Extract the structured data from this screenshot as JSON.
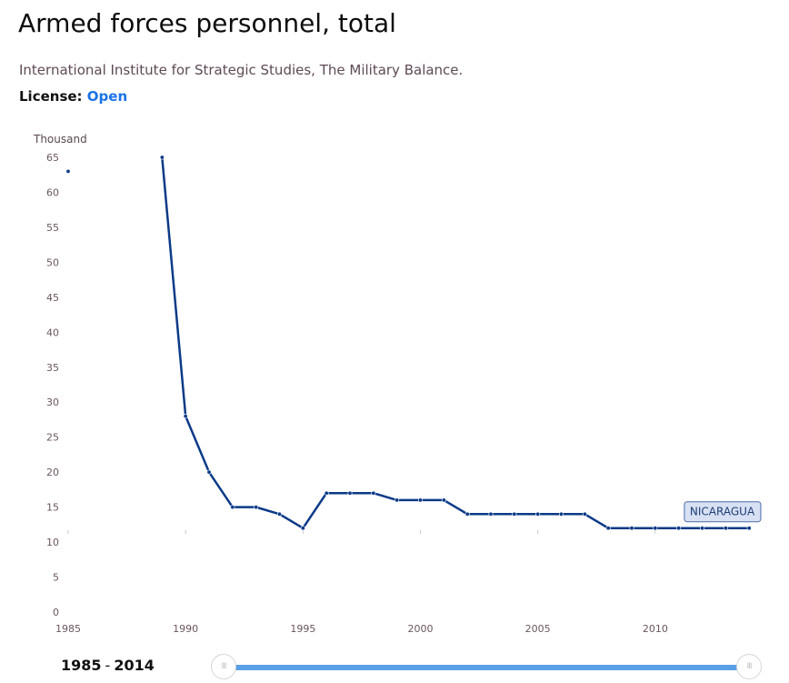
{
  "header": {
    "title": "Armed forces personnel, total",
    "source": "International Institute for Strategic Studies, The Military Balance.",
    "license_label": "License:",
    "license_value": "Open"
  },
  "chart_data": {
    "type": "line",
    "y_unit_label": "Thousand",
    "xlim": [
      1985,
      2015
    ],
    "ylim": [
      0,
      65
    ],
    "x_ticks": [
      1985,
      1990,
      1995,
      2000,
      2005,
      2010
    ],
    "y_ticks": [
      0,
      5,
      10,
      15,
      20,
      25,
      30,
      35,
      40,
      45,
      50,
      55,
      60,
      65
    ],
    "grid": false,
    "series": [
      {
        "name": "NICARAGUA",
        "color": "#0b3a87",
        "points": [
          {
            "x": 1985,
            "y": 63
          },
          {
            "x": 1989,
            "y": 65
          },
          {
            "x": 1990,
            "y": 28
          },
          {
            "x": 1991,
            "y": 20
          },
          {
            "x": 1992,
            "y": 15
          },
          {
            "x": 1993,
            "y": 15
          },
          {
            "x": 1994,
            "y": 14
          },
          {
            "x": 1995,
            "y": 12
          },
          {
            "x": 1996,
            "y": 17
          },
          {
            "x": 1997,
            "y": 17
          },
          {
            "x": 1998,
            "y": 17
          },
          {
            "x": 1999,
            "y": 16
          },
          {
            "x": 2000,
            "y": 16
          },
          {
            "x": 2001,
            "y": 16
          },
          {
            "x": 2002,
            "y": 14
          },
          {
            "x": 2003,
            "y": 14
          },
          {
            "x": 2004,
            "y": 14
          },
          {
            "x": 2005,
            "y": 14
          },
          {
            "x": 2006,
            "y": 14
          },
          {
            "x": 2007,
            "y": 14
          },
          {
            "x": 2008,
            "y": 12
          },
          {
            "x": 2009,
            "y": 12
          },
          {
            "x": 2010,
            "y": 12
          },
          {
            "x": 2011,
            "y": 12
          },
          {
            "x": 2012,
            "y": 12
          },
          {
            "x": 2013,
            "y": 12
          },
          {
            "x": 2014,
            "y": 12
          }
        ]
      }
    ]
  },
  "range": {
    "start": "1985",
    "separator": "-",
    "end": "2014"
  },
  "slider": {
    "handle_glyph": "III",
    "start_fraction": 0,
    "end_fraction": 1
  }
}
